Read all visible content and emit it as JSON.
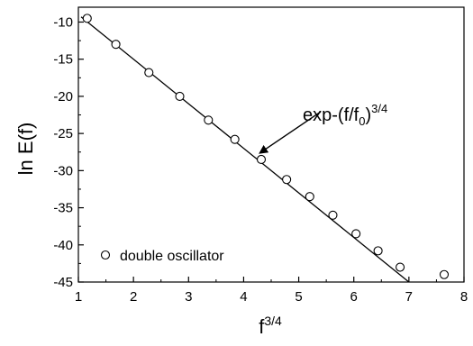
{
  "chart_data": {
    "type": "scatter",
    "title": "",
    "xlabel_base": "f",
    "xlabel_sup": "3/4",
    "ylabel": "ln E(f)",
    "xlim": [
      1,
      8
    ],
    "ylim": [
      -45,
      -8
    ],
    "x_ticks": [
      1,
      2,
      3,
      4,
      5,
      6,
      7,
      8
    ],
    "y_ticks": [
      -10,
      -15,
      -20,
      -25,
      -30,
      -35,
      -40,
      -45
    ],
    "grid": false,
    "legend_position": "bottom-left",
    "series": [
      {
        "name": "double oscillator",
        "marker": "open-circle",
        "x": [
          1.16,
          1.68,
          2.28,
          2.84,
          3.36,
          3.84,
          4.32,
          4.78,
          5.2,
          5.62,
          6.04,
          6.44,
          6.84,
          7.64
        ],
        "y": [
          -9.5,
          -13.0,
          -16.8,
          -20.0,
          -23.2,
          -25.8,
          -28.5,
          -31.2,
          -33.5,
          -36.0,
          -38.5,
          -40.8,
          -43.0,
          -44.0
        ]
      }
    ],
    "fit_line": {
      "x": [
        1.05,
        7.0
      ],
      "y": [
        -9.3,
        -45.0
      ]
    },
    "annotation": {
      "text_base": "exp-(f/f",
      "text_sub": "0",
      "text_close": ")",
      "text_sup": "3/4",
      "points_to": [
        4.3,
        -27.6
      ]
    }
  },
  "colors": {
    "axis": "#000000",
    "marker_fill": "#ffffff",
    "marker_stroke": "#000000",
    "line": "#000000"
  }
}
